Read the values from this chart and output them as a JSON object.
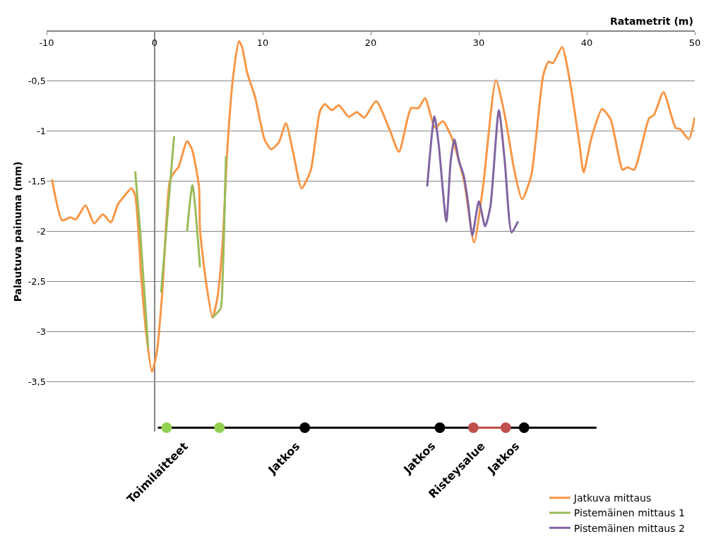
{
  "chart_data": {
    "type": "line",
    "xlabel": "Ratametrit (m)",
    "ylabel": "Palautuva painuma (mm)",
    "xlim": [
      -10,
      50
    ],
    "xticks": [
      -10,
      0,
      10,
      20,
      30,
      40,
      50
    ],
    "ylim": [
      -4.0,
      0
    ],
    "yticks": [
      {
        "value": -0.5,
        "label": "-0,5"
      },
      -1,
      {
        "value": -1.5,
        "label": "-1,5"
      },
      -2,
      {
        "value": -2.5,
        "label": "-2,5"
      },
      -3,
      {
        "value": -3.5,
        "label": "-3,5"
      }
    ],
    "grid": "y",
    "legend": "bottom right",
    "line_style": "solid",
    "series": [
      {
        "name": "Jatkuva mittaus",
        "color": "#f79646",
        "x": [
          -9.5,
          -8.55,
          -7.8,
          -7.3,
          -6.4,
          -5.6,
          -4.8,
          -4.05,
          -3.4,
          -2.75,
          -2.15,
          -1.8,
          -1.25,
          -0.8,
          -0.25,
          0.2,
          0.7,
          1.4,
          1.8,
          2.2,
          3.0,
          3.45,
          4.1,
          4.2,
          4.75,
          5.35,
          5.8,
          6.3,
          6.7,
          7.25,
          7.8,
          8.1,
          8.55,
          9.3,
          10.2,
          10.8,
          11.5,
          12.15,
          12.8,
          13.6,
          14.45,
          15.3,
          15.75,
          16.4,
          17.05,
          17.95,
          18.73,
          19.4,
          20.5,
          21.73,
          22.62,
          23.73,
          24.4,
          25.03,
          25.96,
          26.67,
          27.52,
          28.63,
          29.57,
          30.41,
          31.59,
          32.41,
          33.31,
          34.01,
          34.86,
          35.97,
          36.46,
          36.86,
          37.71,
          38.42,
          39.31,
          39.71,
          40.42,
          41.42,
          42.2,
          43.32,
          43.76,
          44.38,
          45.77,
          46.21,
          47.1,
          48.22,
          48.66,
          49.44,
          50
        ],
        "values": [
          -1.48,
          -1.89,
          -1.86,
          -1.88,
          -1.74,
          -1.92,
          -1.83,
          -1.91,
          -1.73,
          -1.64,
          -1.57,
          -1.64,
          -2.44,
          -3.0,
          -3.4,
          -3.21,
          -2.62,
          -1.5,
          -1.41,
          -1.36,
          -1.1,
          -1.18,
          -1.55,
          -1.98,
          -2.5,
          -2.86,
          -2.67,
          -2.1,
          -1.23,
          -0.47,
          -0.1,
          -0.16,
          -0.41,
          -0.66,
          -1.09,
          -1.18,
          -1.11,
          -0.92,
          -1.2,
          -1.57,
          -1.39,
          -0.8,
          -0.73,
          -0.79,
          -0.74,
          -0.855,
          -0.81,
          -0.865,
          -0.7,
          -0.98,
          -1.205,
          -0.77,
          -0.77,
          -0.67,
          -0.965,
          -0.9,
          -1.07,
          -1.49,
          -2.11,
          -1.54,
          -0.49,
          -0.84,
          -1.4,
          -1.68,
          -1.44,
          -0.44,
          -0.305,
          -0.32,
          -0.16,
          -0.49,
          -1.12,
          -1.41,
          -1.07,
          -0.78,
          -0.88,
          -1.385,
          -1.36,
          -1.385,
          -0.87,
          -0.84,
          -0.61,
          -0.965,
          -0.98,
          -1.08,
          -0.86
        ]
      },
      {
        "name": "Pistemäinen mittaus 1",
        "color": "#9bbb59",
        "x": [
          -1.8,
          -1.35,
          -0.6,
          0.0,
          0.6,
          1.8,
          2.4,
          3.0,
          3.5,
          4.2,
          4.8,
          5.35,
          6.1,
          6.3,
          6.6
        ],
        "values": [
          -1.4,
          -1.98,
          -3.16,
          null,
          -2.61,
          -1.05,
          null,
          -2.0,
          -1.54,
          -2.36,
          null,
          -2.86,
          -2.77,
          -2.44,
          -1.25
        ]
      },
      {
        "name": "Pistemäinen mittaus 2",
        "color": "#8064a2",
        "x": [
          25.23,
          25.9,
          26.3,
          27.0,
          27.4,
          27.74,
          28.18,
          28.6,
          28.97,
          29.41,
          30.01,
          30.59,
          31.08,
          31.86,
          32.41,
          33.04,
          33.64
        ],
        "values": [
          -1.55,
          -0.85,
          -1.14,
          -1.9,
          -1.3,
          -1.08,
          -1.3,
          -1.44,
          -1.68,
          -2.04,
          -1.7,
          -1.95,
          -1.75,
          -0.79,
          -1.3,
          -2.01,
          -1.9
        ]
      },
      {
        "color": "#000000",
        "x": [
          0.3,
          40.9
        ],
        "values": [
          -3.96,
          -3.96
        ]
      },
      {
        "color": "#c0504d",
        "x": [
          29.5,
          32.5
        ],
        "values": [
          -3.96,
          -3.96
        ]
      },
      {
        "type": "scatter",
        "marker": "circle",
        "color": "#92d050",
        "x": [
          1.1,
          6.0
        ],
        "values": [
          -3.96,
          -3.96
        ]
      },
      {
        "type": "scatter",
        "marker": "circle",
        "color": "#000000",
        "x": [
          13.9,
          26.4,
          34.2
        ],
        "values": [
          -3.96,
          -3.96,
          -3.96
        ]
      },
      {
        "type": "scatter",
        "marker": "circle",
        "color": "#c0504d",
        "x": [
          29.5,
          32.5
        ],
        "values": [
          -3.96,
          -3.96
        ]
      }
    ],
    "annotations": [
      {
        "text": "Toimilaitteet",
        "x": 3.5,
        "y": -3.96
      },
      {
        "text": "Jatkos",
        "x": 13.9,
        "y": -3.96
      },
      {
        "text": "Jatkos",
        "x": 26.4,
        "y": -3.96
      },
      {
        "text": "Risteysalue",
        "x": 31.0,
        "y": -3.96
      },
      {
        "text": "Jatkos",
        "x": 34.2,
        "y": -3.96
      }
    ]
  }
}
